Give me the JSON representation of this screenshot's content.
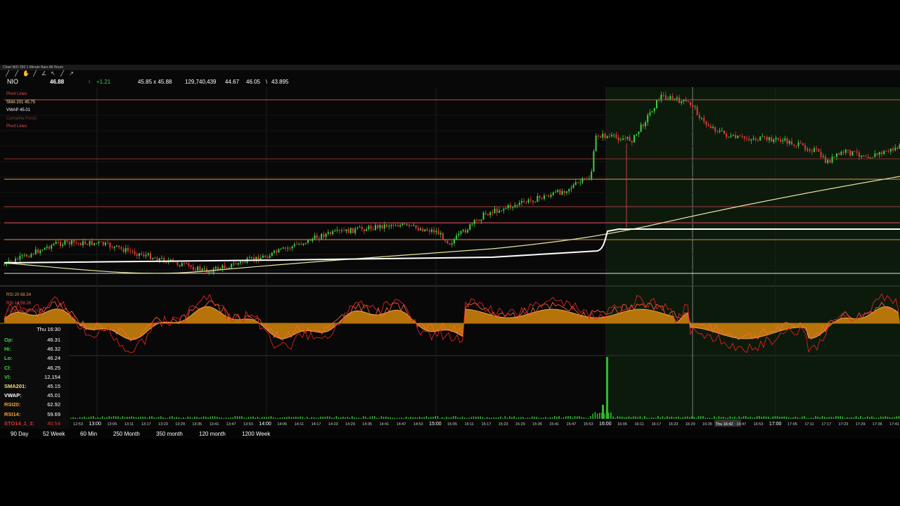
{
  "window": {
    "title": "Chart NIO 250 1 Minute Bars All Hours"
  },
  "toolbar": {
    "icons": [
      "draw-line-icon",
      "draw-ray-icon",
      "hand-icon",
      "draw-segment-icon",
      "draw-angle-icon",
      "pointer-icon",
      "crosshair-icon",
      "cursor-icon"
    ]
  },
  "quote": {
    "symbol": "NIO",
    "last": "46.88",
    "arrow": "↑",
    "change": "+1.21",
    "bid_ask": "45.85  x  45.88",
    "volume": "129,740,439",
    "low": "44.67",
    "high": "46.05",
    "sep": "\\",
    "prev": "43.895"
  },
  "price_legend": [
    {
      "label": "Pivot Lines",
      "value": "",
      "color": "#e05050"
    },
    {
      "label": "SMA 201",
      "value": "45.75",
      "color": "#e8e4a0"
    },
    {
      "label": "VWAP",
      "value": "45.01",
      "color": "#ffffff"
    },
    {
      "label": "Camarilla Pivots",
      "value": "",
      "color": "#7a3a3a"
    },
    {
      "label": "Pivot Lines",
      "value": "",
      "color": "#e05050"
    }
  ],
  "osc_legend": [
    {
      "label": "RSI 20",
      "value": "68.34",
      "color": "#e0a050"
    },
    {
      "label": "RSI 14",
      "value": "58.26",
      "color": "#e05050"
    },
    {
      "label": "STO 14 1 3",
      "value": "86.00",
      "color": "#a03030"
    }
  ],
  "data_window": {
    "timestamp": "Thu 16:30",
    "rows": [
      {
        "label": "Op:",
        "value": "46.31",
        "color": "#46d246"
      },
      {
        "label": "Hi:",
        "value": "46.32",
        "color": "#46d246"
      },
      {
        "label": "Lo:",
        "value": "46.24",
        "color": "#46d246"
      },
      {
        "label": "Cl:",
        "value": "46.25",
        "color": "#46d246"
      },
      {
        "label": "Vl:",
        "value": "12,154",
        "color": "#46d246"
      },
      {
        "label": "SMA201:",
        "value": "45.15",
        "color": "#f0e070"
      },
      {
        "label": "VWAP:",
        "value": "45.01",
        "color": "#ffffff"
      },
      {
        "label": "RSI20:",
        "value": "62.92",
        "color": "#f0a040"
      },
      {
        "label": "RSI14:",
        "value": "59.69",
        "color": "#f0a040"
      },
      {
        "label": "STO14_1_3:",
        "value": "40.54",
        "color": "#e03030"
      }
    ]
  },
  "time_axis": {
    "labels": [
      "12:53",
      "13:00",
      "13:05",
      "13:11",
      "13:17",
      "13:23",
      "13:29",
      "13:35",
      "13:41",
      "13:47",
      "13:53",
      "14:00",
      "14:05",
      "14:11",
      "14:17",
      "14:23",
      "14:29",
      "14:35",
      "14:41",
      "14:47",
      "14:53",
      "15:00",
      "15:05",
      "15:11",
      "15:17",
      "15:23",
      "15:29",
      "15:35",
      "15:41",
      "15:47",
      "15:53",
      "16:00",
      "16:05",
      "16:11",
      "16:17",
      "16:23",
      "16:29",
      "16:35",
      "Thu 16:42",
      "16:47",
      "16:53",
      "17:00",
      "17:05",
      "17:11",
      "17:17",
      "17:23",
      "17:29",
      "17:35",
      "17:41"
    ],
    "hour_labels": [
      "13:00",
      "14:00",
      "15:00",
      "16:00",
      "17:00"
    ],
    "highlight": "Thu 16:42"
  },
  "tabs": [
    {
      "label": "90 Day"
    },
    {
      "label": "52 Week"
    },
    {
      "label": "60 Min"
    },
    {
      "label": "250 Month"
    },
    {
      "label": "350 month"
    },
    {
      "label": "120 month"
    },
    {
      "label": "1200 Week"
    }
  ],
  "colors": {
    "up": "#3ecf3e",
    "down": "#e03a3a",
    "pivot": "#e87a3a",
    "sma": "#e8e4a0",
    "vwap": "#ffffff",
    "rsi_fill": "#d4860a",
    "after_hours_bg": "#0c1a0c",
    "volume": "#2eb82e"
  }
}
